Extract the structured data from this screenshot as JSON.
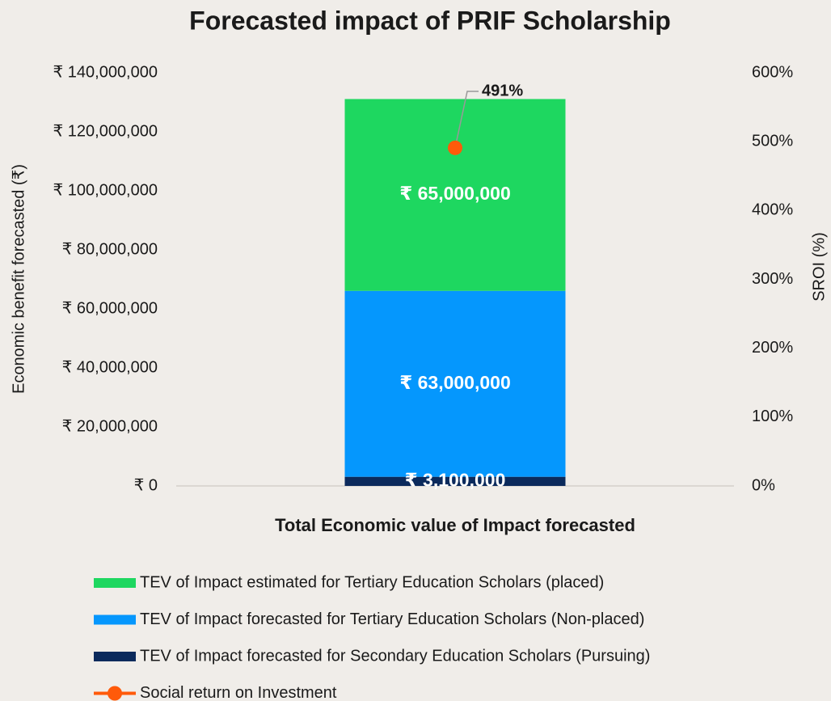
{
  "chart_data": {
    "type": "bar",
    "stacked": true,
    "title": "Forecasted impact of PRIF Scholarship",
    "categories": [
      "Total Economic value of Impact forecasted"
    ],
    "y_label": "Economic benefit forecasted (₹)",
    "y2_label": "SROI (%)",
    "ylim": [
      0,
      140000000
    ],
    "yticks": [
      {
        "value": 0,
        "label": "₹ 0"
      },
      {
        "value": 20000000,
        "label": "₹ 20,000,000"
      },
      {
        "value": 40000000,
        "label": "₹ 40,000,000"
      },
      {
        "value": 60000000,
        "label": "₹ 60,000,000"
      },
      {
        "value": 80000000,
        "label": "₹ 80,000,000"
      },
      {
        "value": 100000000,
        "label": "₹ 100,000,000"
      },
      {
        "value": 120000000,
        "label": "₹ 120,000,000"
      },
      {
        "value": 140000000,
        "label": "₹ 140,000,000"
      }
    ],
    "y2lim": [
      0,
      600
    ],
    "y2ticks": [
      {
        "value": 0,
        "label": "0%"
      },
      {
        "value": 100,
        "label": "100%"
      },
      {
        "value": 200,
        "label": "200%"
      },
      {
        "value": 300,
        "label": "300%"
      },
      {
        "value": 400,
        "label": "400%"
      },
      {
        "value": 500,
        "label": "500%"
      },
      {
        "value": 600,
        "label": "600%"
      }
    ],
    "grid": false,
    "legend": "bottom",
    "series": [
      {
        "name": "TEV of Impact forecasted for Secondary Education Scholars (Pursuing)",
        "color": "#0b2a5c",
        "values": [
          3100000
        ],
        "value_labels": [
          "₹ 3,100,000"
        ]
      },
      {
        "name": "TEV of Impact forecasted for Tertiary Education Scholars (Non-placed)",
        "color": "#0597fd",
        "values": [
          63000000
        ],
        "value_labels": [
          "₹ 63,000,000"
        ]
      },
      {
        "name": "TEV of Impact estimated for Tertiary Education Scholars (placed)",
        "color": "#1ed760",
        "values": [
          65000000
        ],
        "value_labels": [
          "₹ 65,000,000"
        ]
      },
      {
        "name": "Social return on Investment",
        "type": "line",
        "axis": "y2",
        "color": "#ff5a0a",
        "values": [
          491
        ],
        "value_labels": [
          "491%"
        ]
      }
    ]
  }
}
